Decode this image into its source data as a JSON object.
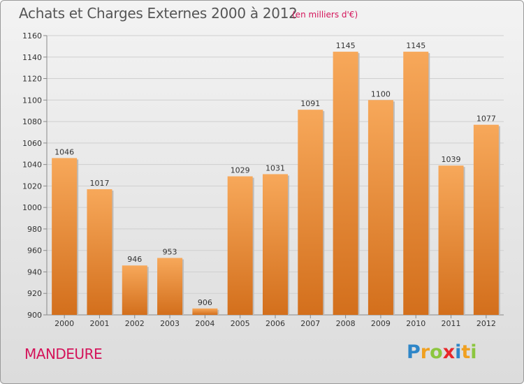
{
  "header": {
    "title": "Achats et Charges Externes 2000 à 2012",
    "subtitle": "(en milliers d'€)"
  },
  "footer": {
    "commune": "MANDEURE",
    "logo": {
      "text": "Proxiti",
      "letters": [
        {
          "char": "P",
          "color": "#2e86c8"
        },
        {
          "char": "r",
          "color": "#f0a020"
        },
        {
          "char": "o",
          "color": "#8cc63f"
        },
        {
          "char": "x",
          "color": "#e8272a"
        },
        {
          "char": "i",
          "color": "#2e86c8"
        },
        {
          "char": "t",
          "color": "#f0a020"
        },
        {
          "char": "i",
          "color": "#8cc63f"
        }
      ]
    }
  },
  "colors": {
    "bar_top": "#f7a85a",
    "bar_bottom": "#d36f1c",
    "accent": "#d4145a"
  },
  "chart_data": {
    "type": "bar",
    "title": "Achats et Charges Externes 2000 à 2012",
    "subtitle": "(en milliers d'€)",
    "xlabel": "",
    "ylabel": "",
    "categories": [
      "2000",
      "2001",
      "2002",
      "2003",
      "2004",
      "2005",
      "2006",
      "2007",
      "2008",
      "2009",
      "2010",
      "2011",
      "2012"
    ],
    "values": [
      1046,
      1017,
      946,
      953,
      906,
      1029,
      1031,
      1091,
      1145,
      1100,
      1145,
      1039,
      1077
    ],
    "ylim": [
      900,
      1160
    ],
    "yticks": [
      900,
      920,
      940,
      960,
      980,
      1000,
      1020,
      1040,
      1060,
      1080,
      1100,
      1120,
      1140,
      1160
    ],
    "grid": true,
    "legend": "none"
  }
}
